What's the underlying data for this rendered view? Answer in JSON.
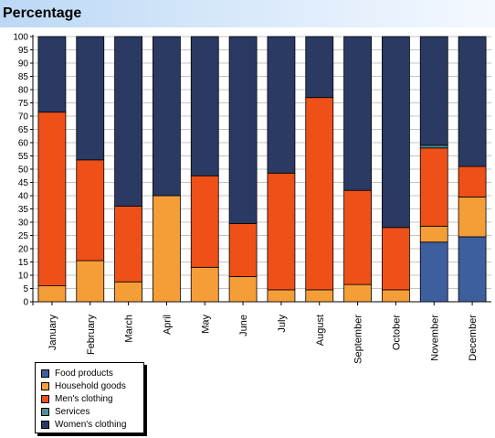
{
  "page": {
    "title": "Percentage"
  },
  "chart_data": {
    "type": "bar",
    "stacked": true,
    "categories": [
      "January",
      "February",
      "March",
      "April",
      "May",
      "June",
      "July",
      "August",
      "September",
      "October",
      "November",
      "December"
    ],
    "series": [
      {
        "name": "Food products",
        "color": "#3d5f9e",
        "values": [
          0,
          0,
          0,
          0,
          0,
          0,
          0,
          0,
          0,
          0,
          22.5,
          24.5
        ]
      },
      {
        "name": "Household goods",
        "color": "#f59e38",
        "values": [
          6,
          15.5,
          7.5,
          40,
          13,
          9.5,
          4.5,
          4.5,
          6.5,
          4.5,
          6,
          15
        ]
      },
      {
        "name": "Men's clothing",
        "color": "#ef5018",
        "values": [
          65.5,
          38,
          28.5,
          0,
          34.5,
          20,
          44,
          72.5,
          35.5,
          23.5,
          29.5,
          11.5
        ]
      },
      {
        "name": "Services",
        "color": "#4f8e96",
        "values": [
          0,
          0,
          0,
          0,
          0,
          0,
          0,
          0,
          0,
          0,
          1,
          0
        ]
      },
      {
        "name": "Women's clothing",
        "color": "#2a3a63",
        "values": [
          28.5,
          46.5,
          64,
          60,
          52.5,
          70.5,
          51.5,
          23,
          58,
          72,
          41,
          49
        ]
      }
    ],
    "ylim": [
      0,
      100
    ],
    "yticks": [
      0,
      5,
      10,
      15,
      20,
      25,
      30,
      35,
      40,
      45,
      50,
      55,
      60,
      65,
      70,
      75,
      80,
      85,
      90,
      95,
      100
    ],
    "grid": true,
    "legend_position": "bottom-left"
  }
}
